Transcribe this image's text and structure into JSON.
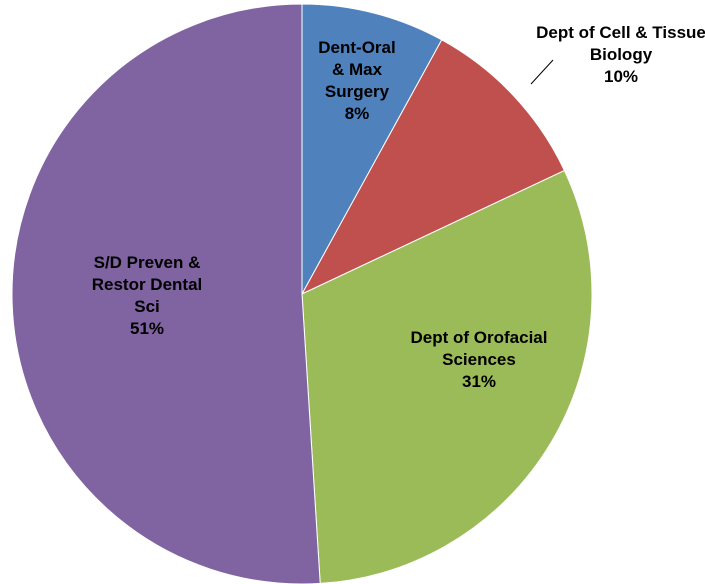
{
  "chart_data": {
    "type": "pie",
    "categories": [
      "Dent-Oral & Max Surgery",
      "Dept of Cell & Tissue Biology",
      "Dept of Orofacial Sciences",
      "S/D Preven & Restor Dental Sci"
    ],
    "values": [
      8,
      10,
      31,
      51
    ],
    "value_labels": [
      "8%",
      "10%",
      "31%",
      "51%"
    ],
    "colors": [
      "#4f81bd",
      "#c0504d",
      "#9bbb59",
      "#8064a2"
    ]
  }
}
